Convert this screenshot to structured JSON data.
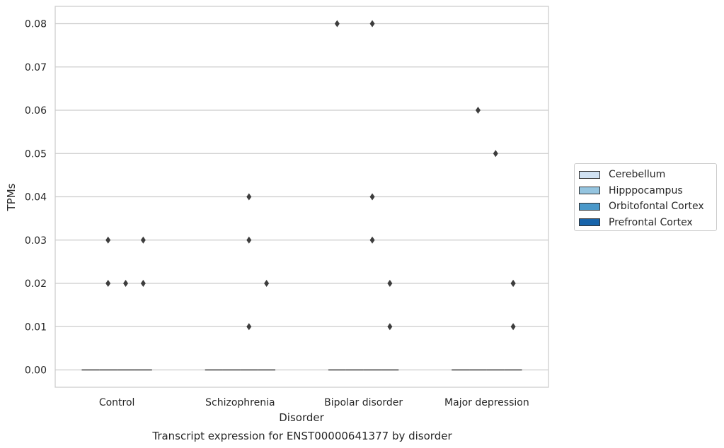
{
  "chart_data": {
    "type": "boxplot",
    "title": "Transcript expression for ENST00000641377 by disorder",
    "xlabel": "Disorder",
    "ylabel": "TPMs",
    "ylim": [
      -0.004,
      0.084
    ],
    "yticks": [
      0.0,
      0.01,
      0.02,
      0.03,
      0.04,
      0.05,
      0.06,
      0.07,
      0.08
    ],
    "ytick_labels": [
      "0.00",
      "0.01",
      "0.02",
      "0.03",
      "0.04",
      "0.05",
      "0.06",
      "0.07",
      "0.08"
    ],
    "categories": [
      "Control",
      "Schizophrenia",
      "Bipolar disorder",
      "Major depression"
    ],
    "grid": true,
    "legend_position": "right",
    "series": [
      {
        "name": "Cerebellum",
        "color": "#d0e1f2",
        "median": [
          0,
          0,
          0,
          0
        ],
        "outliers": [
          [],
          [],
          [
            0.08
          ],
          []
        ]
      },
      {
        "name": "Hipppocampus",
        "color": "#94c4df",
        "median": [
          0,
          0,
          0,
          0
        ],
        "outliers": [
          [
            0.03,
            0.02
          ],
          [],
          [],
          [
            0.06
          ]
        ]
      },
      {
        "name": "Orbitofontal Cortex",
        "color": "#4a98c9",
        "median": [
          0,
          0,
          0,
          0
        ],
        "outliers": [
          [
            0.02
          ],
          [
            0.04,
            0.03,
            0.01
          ],
          [
            0.08,
            0.04,
            0.03
          ],
          [
            0.05
          ]
        ]
      },
      {
        "name": "Prefrontal Cortex",
        "color": "#1764ab",
        "median": [
          0,
          0,
          0,
          0
        ],
        "outliers": [
          [
            0.03,
            0.02
          ],
          [
            0.02
          ],
          [
            0.02,
            0.01
          ],
          [
            0.02,
            0.02,
            0.01
          ]
        ]
      }
    ]
  }
}
